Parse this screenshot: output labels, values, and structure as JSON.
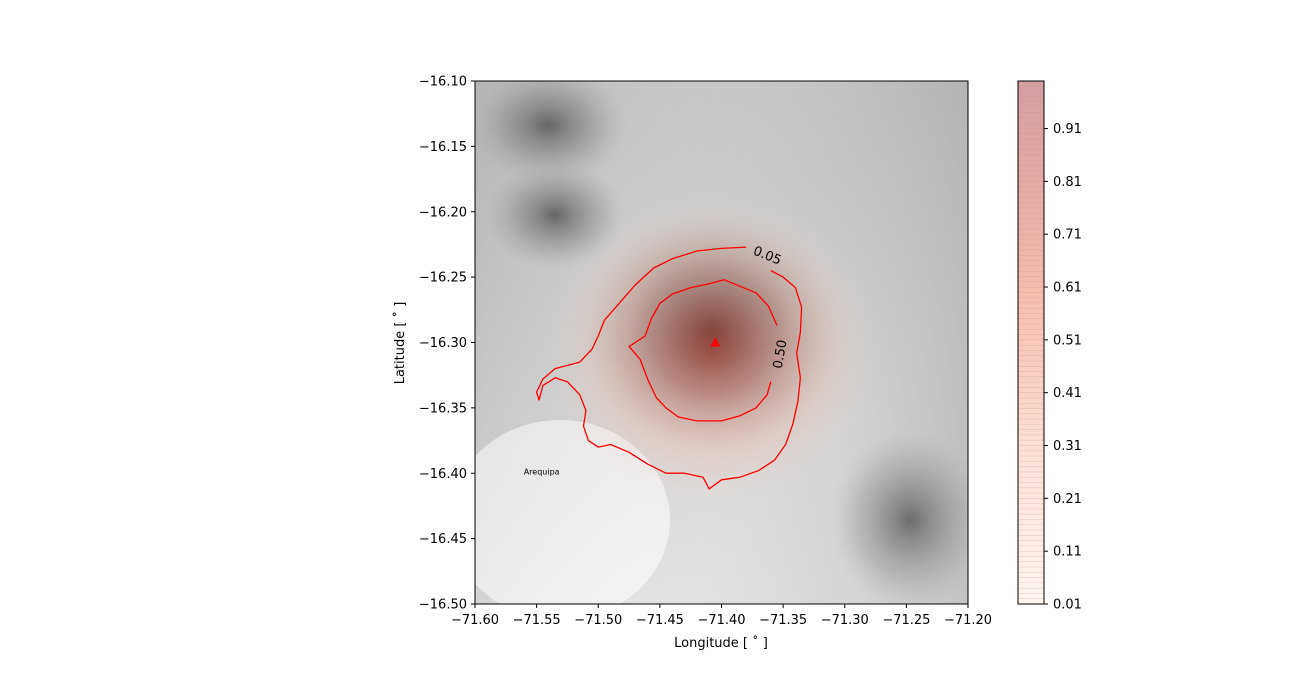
{
  "chart_data": {
    "type": "heatmap",
    "xlabel": "Longitude [$^\\circ$]",
    "xlabel_text": "Longitude [ ˚ ]",
    "ylabel_text": "Latitude [ ˚ ]",
    "xlim": [
      -71.6,
      -71.2
    ],
    "ylim": [
      -16.5,
      -16.1
    ],
    "xticks": [
      -71.6,
      -71.55,
      -71.5,
      -71.45,
      -71.4,
      -71.35,
      -71.3,
      -71.25,
      -71.2
    ],
    "xtick_labels": [
      "−71.60",
      "−71.55",
      "−71.50",
      "−71.45",
      "−71.40",
      "−71.35",
      "−71.30",
      "−71.25",
      "−71.20"
    ],
    "yticks": [
      -16.1,
      -16.15,
      -16.2,
      -16.25,
      -16.3,
      -16.35,
      -16.4,
      -16.45,
      -16.5
    ],
    "ytick_labels": [
      "−16.10",
      "−16.15",
      "−16.20",
      "−16.25",
      "−16.30",
      "−16.35",
      "−16.40",
      "−16.45",
      "−16.50"
    ],
    "colorbar": {
      "ticks": [
        0.01,
        0.11,
        0.21,
        0.31,
        0.41,
        0.51,
        0.61,
        0.71,
        0.81,
        0.91
      ],
      "tick_labels": [
        "0.01",
        "0.11",
        "0.21",
        "0.31",
        "0.41",
        "0.51",
        "0.61",
        "0.71",
        "0.81",
        "0.91"
      ],
      "range": [
        0.01,
        1.0
      ],
      "color_low": "#fff5f0",
      "color_high": "#b82a2a"
    },
    "vent": {
      "x": -71.405,
      "y": -16.3,
      "color": "#ff0000"
    },
    "contours": [
      {
        "level_label": "0.05",
        "color": "#ff0000",
        "points": [
          [
            -71.38,
            -16.227
          ],
          [
            -71.4,
            -16.228
          ],
          [
            -71.42,
            -16.23
          ],
          [
            -71.44,
            -16.236
          ],
          [
            -71.455,
            -16.243
          ],
          [
            -71.47,
            -16.256
          ],
          [
            -71.483,
            -16.27
          ],
          [
            -71.495,
            -16.283
          ],
          [
            -71.5,
            -16.295
          ],
          [
            -71.505,
            -16.305
          ],
          [
            -71.515,
            -16.315
          ],
          [
            -71.535,
            -16.32
          ],
          [
            -71.545,
            -16.328
          ],
          [
            -71.55,
            -16.338
          ],
          [
            -71.548,
            -16.344
          ],
          [
            -71.545,
            -16.333
          ],
          [
            -71.535,
            -16.327
          ],
          [
            -71.525,
            -16.33
          ],
          [
            -71.515,
            -16.34
          ],
          [
            -71.51,
            -16.352
          ],
          [
            -71.512,
            -16.364
          ],
          [
            -71.508,
            -16.375
          ],
          [
            -71.5,
            -16.38
          ],
          [
            -71.49,
            -16.378
          ],
          [
            -71.475,
            -16.384
          ],
          [
            -71.46,
            -16.393
          ],
          [
            -71.445,
            -16.4
          ],
          [
            -71.43,
            -16.4
          ],
          [
            -71.415,
            -16.403
          ],
          [
            -71.41,
            -16.412
          ],
          [
            -71.4,
            -16.405
          ],
          [
            -71.385,
            -16.403
          ],
          [
            -71.37,
            -16.398
          ],
          [
            -71.357,
            -16.39
          ],
          [
            -71.348,
            -16.378
          ],
          [
            -71.342,
            -16.362
          ],
          [
            -71.338,
            -16.345
          ],
          [
            -71.336,
            -16.327
          ],
          [
            -71.339,
            -16.308
          ],
          [
            -71.336,
            -16.292
          ],
          [
            -71.335,
            -16.273
          ],
          [
            -71.34,
            -16.258
          ],
          [
            -71.35,
            -16.25
          ],
          [
            -71.36,
            -16.245
          ]
        ]
      },
      {
        "level_label": "0.50",
        "color": "#ff0000",
        "points": [
          [
            -71.355,
            -16.287
          ],
          [
            -71.362,
            -16.272
          ],
          [
            -71.372,
            -16.262
          ],
          [
            -71.385,
            -16.257
          ],
          [
            -71.398,
            -16.252
          ],
          [
            -71.41,
            -16.255
          ],
          [
            -71.425,
            -16.258
          ],
          [
            -71.44,
            -16.263
          ],
          [
            -71.45,
            -16.27
          ],
          [
            -71.457,
            -16.282
          ],
          [
            -71.462,
            -16.295
          ],
          [
            -71.47,
            -16.3
          ],
          [
            -71.475,
            -16.303
          ],
          [
            -71.466,
            -16.313
          ],
          [
            -71.46,
            -16.328
          ],
          [
            -71.453,
            -16.342
          ],
          [
            -71.445,
            -16.35
          ],
          [
            -71.435,
            -16.357
          ],
          [
            -71.42,
            -16.36
          ],
          [
            -71.4,
            -16.36
          ],
          [
            -71.385,
            -16.356
          ],
          [
            -71.372,
            -16.35
          ],
          [
            -71.363,
            -16.34
          ],
          [
            -71.36,
            -16.33
          ]
        ]
      }
    ],
    "contour_label_positions": [
      {
        "text": "0.05",
        "x": -71.363,
        "y": -16.234,
        "rotation": 22
      },
      {
        "text": "0.50",
        "x": -71.352,
        "y": -16.309,
        "rotation": -80
      }
    ],
    "annotations": [
      {
        "text": "Arequipa",
        "x": -71.55,
        "y": -16.4
      }
    ]
  }
}
